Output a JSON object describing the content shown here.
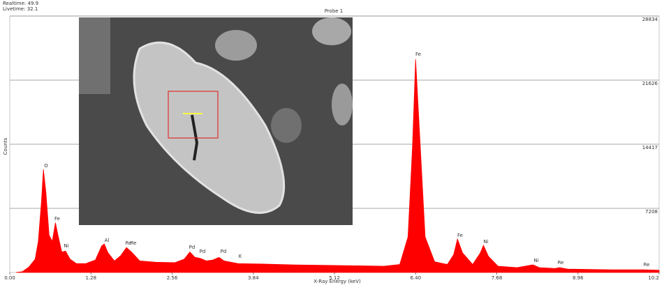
{
  "chart_data": {
    "type": "area",
    "header": {
      "realtime": "Realtime: 49.9",
      "livetime": "Livetime: 32.1",
      "probe": "Probe 1"
    },
    "ylabel": "Counts",
    "xlabel": "X-Ray Energy (keV)",
    "color": "#ff0000",
    "grid": true,
    "xlim": [
      0,
      10.24
    ],
    "ylim": [
      0,
      28834
    ],
    "xticks": [
      {
        "value": 0,
        "label": "0.00"
      },
      1.28,
      2.56,
      3.84,
      5.12,
      {
        "value": 6.4,
        "label": "6.40"
      },
      7.68,
      8.96,
      {
        "value": 10.24,
        "label": "10.2"
      }
    ],
    "yticks": [
      7208,
      14417,
      21626,
      28834
    ],
    "x": [
      0.1,
      0.2,
      0.3,
      0.4,
      0.45,
      0.5,
      0.53,
      0.57,
      0.62,
      0.67,
      0.72,
      0.76,
      0.82,
      0.88,
      0.95,
      1.05,
      1.2,
      1.35,
      1.45,
      1.49,
      1.55,
      1.65,
      1.75,
      1.84,
      1.92,
      2.05,
      2.3,
      2.6,
      2.75,
      2.84,
      2.92,
      3.0,
      3.1,
      3.2,
      3.3,
      3.38,
      3.6,
      4.0,
      4.5,
      5.0,
      5.5,
      5.9,
      6.15,
      6.28,
      6.35,
      6.4,
      6.46,
      6.55,
      6.7,
      6.9,
      7.0,
      7.06,
      7.14,
      7.3,
      7.42,
      7.47,
      7.55,
      7.7,
      8.0,
      8.25,
      8.35,
      8.6,
      8.67,
      8.8,
      9.5,
      10.0,
      10.24
    ],
    "values": [
      0,
      100,
      600,
      1500,
      3500,
      8000,
      11600,
      9000,
      4200,
      3500,
      5600,
      4200,
      2300,
      2400,
      1500,
      1000,
      1000,
      1400,
      3000,
      3200,
      2200,
      1300,
      1900,
      2800,
      2300,
      1300,
      1150,
      1100,
      1500,
      2300,
      1700,
      1600,
      1300,
      1400,
      1700,
      1300,
      1000,
      950,
      850,
      800,
      750,
      700,
      900,
      4000,
      14000,
      23975,
      16000,
      4000,
      1200,
      900,
      2000,
      3760,
      2200,
      900,
      2200,
      3050,
      1800,
      700,
      550,
      860,
      550,
      450,
      550,
      380,
      300,
      300,
      250
    ],
    "peak_labels": [
      "O",
      "Fe",
      "Ni",
      "Al",
      "Re",
      "Re",
      "Pd",
      "Pd",
      "Pd",
      "K",
      "Fe",
      "Fe",
      "Ni",
      "Ni",
      "Re",
      "Re"
    ]
  }
}
